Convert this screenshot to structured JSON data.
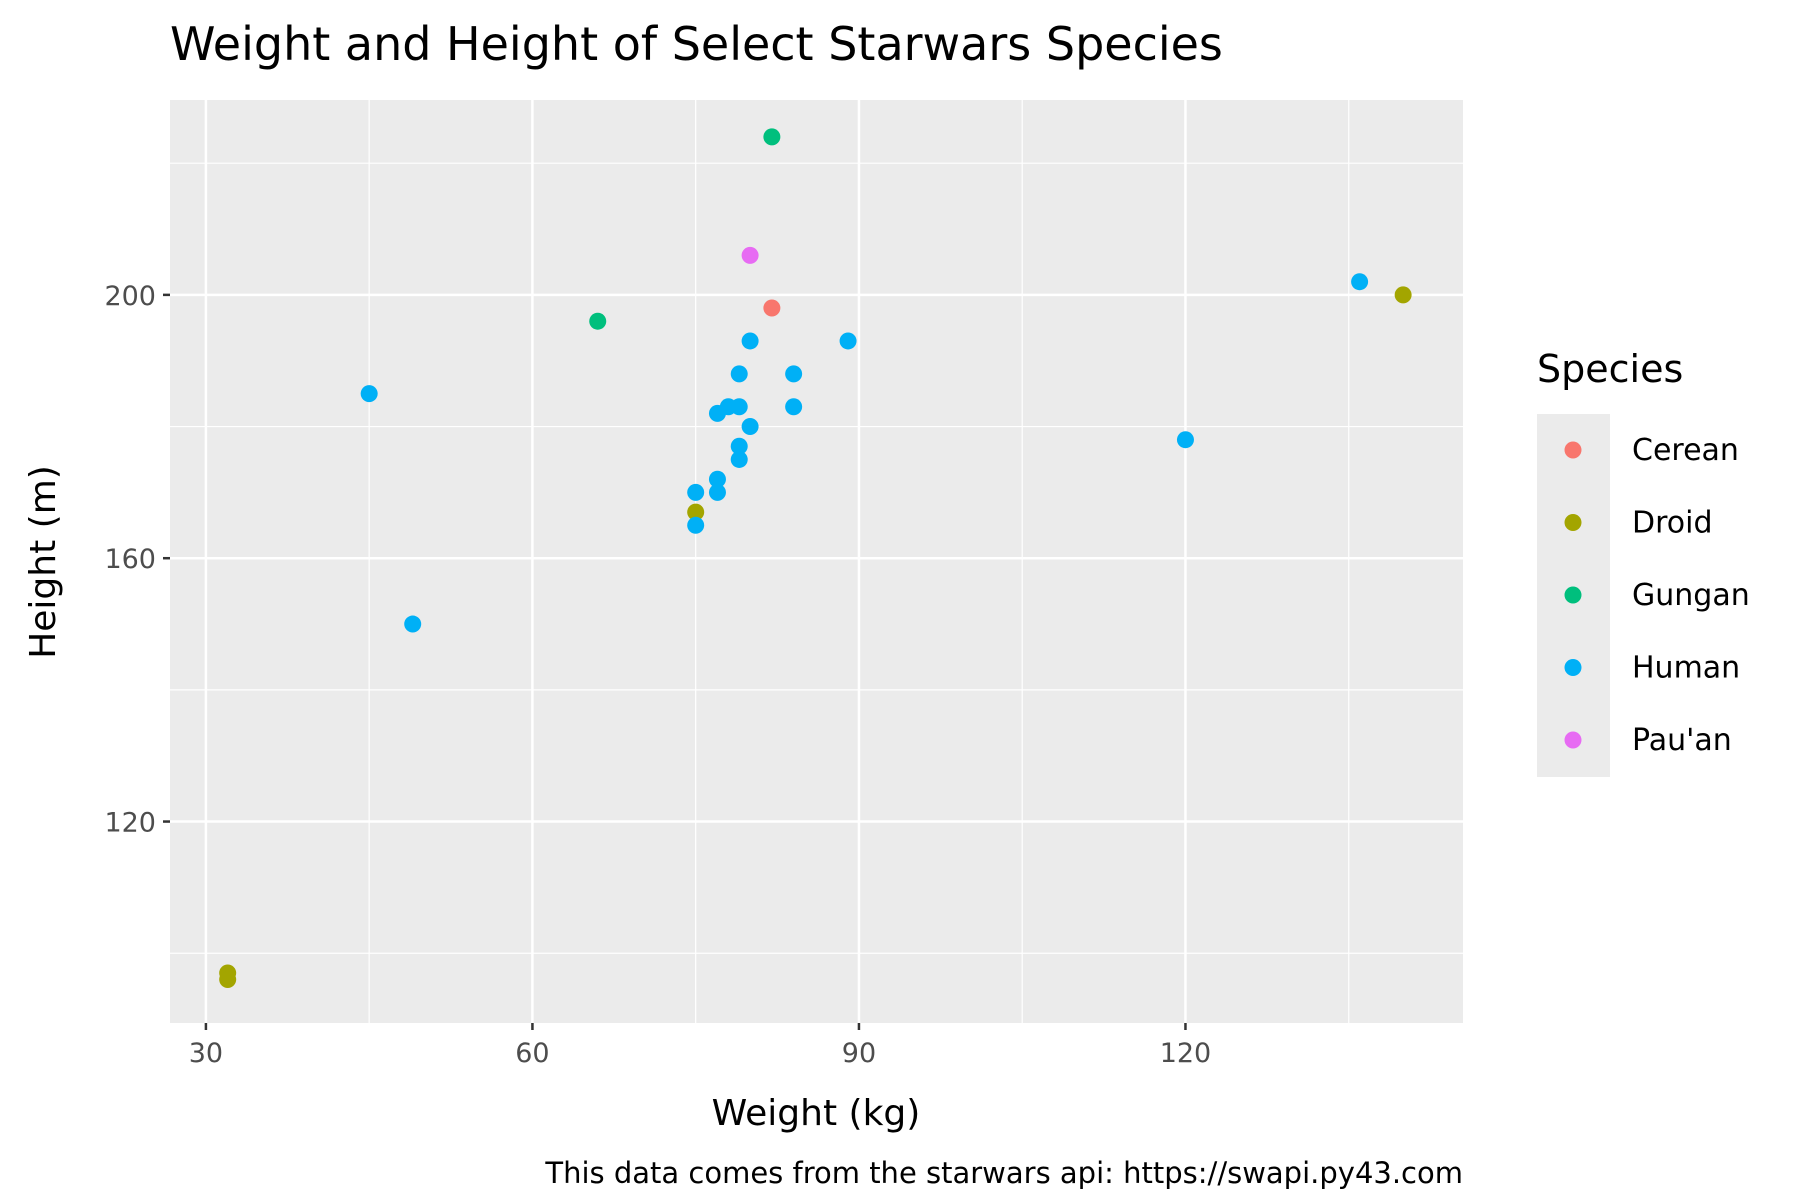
{
  "chart_data": {
    "type": "scatter",
    "title": "Weight and Height of Select Starwars Species",
    "xlabel": "Weight (kg)",
    "ylabel": "Height (m)",
    "caption": "This data comes from the starwars api: https://swapi.py43.com",
    "xlim": [
      26.7,
      145.5
    ],
    "ylim": [
      89.4,
      229.6
    ],
    "x_ticks": [
      30,
      60,
      90,
      120
    ],
    "y_ticks": [
      120,
      160,
      200
    ],
    "x_minor": [
      45,
      75,
      105,
      135
    ],
    "y_minor": [
      100,
      140,
      180,
      220
    ],
    "grid": true,
    "legend": {
      "title": "Species",
      "position": "right"
    },
    "series": [
      {
        "name": "Cerean",
        "color": "#F8766D",
        "points": [
          [
            82,
            198
          ]
        ]
      },
      {
        "name": "Droid",
        "color": "#A3A500",
        "points": [
          [
            32,
            97
          ],
          [
            32,
            96
          ],
          [
            75,
            167
          ],
          [
            140,
            200
          ]
        ]
      },
      {
        "name": "Gungan",
        "color": "#00BF7D",
        "points": [
          [
            66,
            196
          ],
          [
            82,
            224
          ]
        ]
      },
      {
        "name": "Human",
        "color": "#00B0F6",
        "points": [
          [
            45,
            185
          ],
          [
            49,
            150
          ],
          [
            75,
            165
          ],
          [
            75,
            170
          ],
          [
            77,
            170
          ],
          [
            77,
            172
          ],
          [
            77,
            182
          ],
          [
            78,
            183
          ],
          [
            79,
            183
          ],
          [
            79,
            188
          ],
          [
            79,
            177
          ],
          [
            79,
            175
          ],
          [
            80,
            193
          ],
          [
            80,
            180
          ],
          [
            84,
            188
          ],
          [
            84,
            183
          ],
          [
            89,
            193
          ],
          [
            120,
            178
          ],
          [
            136,
            202
          ]
        ]
      },
      {
        "name": "Pau'an",
        "color": "#E76BF3",
        "points": [
          [
            80,
            206
          ]
        ]
      }
    ]
  }
}
